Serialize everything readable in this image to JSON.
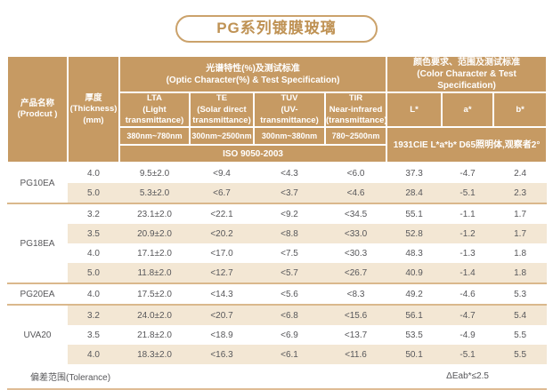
{
  "title": "PG系列镀膜玻璃",
  "colors": {
    "header_bg": "#c69a63",
    "alt_row_bg": "#f3e7d4",
    "group_separator": "#dab88c",
    "title_accent": "#bf9254",
    "body_text": "#57575a"
  },
  "table": {
    "columns": {
      "product": "产品名称\n(Prodcut )",
      "thickness": "厚度\n(Thickness)\n(mm)",
      "optic_section": "光谱特性(%)及测试标准\n(Optic Character(%) & Test Specification)",
      "color_section": "颜色要求、范围及测试标准\n(Color Character & Test Specification)",
      "optic": [
        {
          "label": "LTA\n(Light\ntransmittance)",
          "range": "380nm~780nm"
        },
        {
          "label": "TE\n(Solar direct\ntransmittance)",
          "range": "300nm~2500nm"
        },
        {
          "label": "TUV\n(UV-\ntransmittance)",
          "range": "300nm~380nm"
        },
        {
          "label": "TIR\nNear-infrared\n(transmittance)",
          "range": "780~2500nm"
        }
      ],
      "optic_standard": "ISO 9050-2003",
      "color": [
        "L*",
        "a*",
        "b*"
      ],
      "color_standard": "1931CIE L*a*b* D65照明体,观察者2°"
    },
    "groups": [
      {
        "product": "PG10EA",
        "rows": [
          {
            "thickness": "4.0",
            "lta": "9.5±2.0",
            "te": "<9.4",
            "tuv": "<4.3",
            "tir": "<6.0",
            "l": "37.3",
            "a": "-4.7",
            "b": "2.4"
          },
          {
            "thickness": "5.0",
            "lta": "5.3±2.0",
            "te": "<6.7",
            "tuv": "<3.7",
            "tir": "<4.6",
            "l": "28.4",
            "a": "-5.1",
            "b": "2.3"
          }
        ]
      },
      {
        "product": "PG18EA",
        "rows": [
          {
            "thickness": "3.2",
            "lta": "23.1±2.0",
            "te": "<22.1",
            "tuv": "<9.2",
            "tir": "<34.5",
            "l": "55.1",
            "a": "-1.1",
            "b": "1.7"
          },
          {
            "thickness": "3.5",
            "lta": "20.9±2.0",
            "te": "<20.2",
            "tuv": "<8.8",
            "tir": "<33.0",
            "l": "52.8",
            "a": "-1.2",
            "b": "1.7"
          },
          {
            "thickness": "4.0",
            "lta": "17.1±2.0",
            "te": "<17.0",
            "tuv": "<7.5",
            "tir": "<30.3",
            "l": "48.3",
            "a": "-1.3",
            "b": "1.8"
          },
          {
            "thickness": "5.0",
            "lta": "11.8±2.0",
            "te": "<12.7",
            "tuv": "<5.7",
            "tir": "<26.7",
            "l": "40.9",
            "a": "-1.4",
            "b": "1.8"
          }
        ]
      },
      {
        "product": "PG20EA",
        "rows": [
          {
            "thickness": "4.0",
            "lta": "17.5±2.0",
            "te": "<14.3",
            "tuv": "<5.6",
            "tir": "<8.3",
            "l": "49.2",
            "a": "-4.6",
            "b": "5.3"
          }
        ]
      },
      {
        "product": "UVA20",
        "rows": [
          {
            "thickness": "3.2",
            "lta": "24.0±2.0",
            "te": "<20.7",
            "tuv": "<6.8",
            "tir": "<15.6",
            "l": "56.1",
            "a": "-4.7",
            "b": "5.4"
          },
          {
            "thickness": "3.5",
            "lta": "21.8±2.0",
            "te": "<18.9",
            "tuv": "<6.9",
            "tir": "<13.7",
            "l": "53.5",
            "a": "-4.9",
            "b": "5.5"
          },
          {
            "thickness": "4.0",
            "lta": "18.3±2.0",
            "te": "<16.3",
            "tuv": "<6.1",
            "tir": "<11.6",
            "l": "50.1",
            "a": "-5.1",
            "b": "5.5"
          }
        ]
      }
    ],
    "footer": {
      "label": "偏差范围(Tolerance)",
      "tolerance": "ΔEab*≤2.5"
    }
  }
}
